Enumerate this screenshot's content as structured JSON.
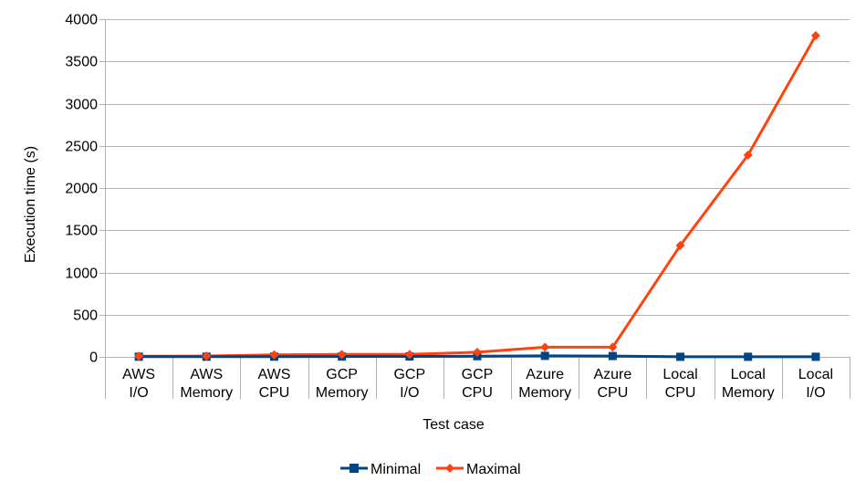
{
  "chart_data": {
    "type": "line",
    "categories": [
      [
        "AWS",
        "I/O"
      ],
      [
        "AWS",
        "Memory"
      ],
      [
        "AWS",
        "CPU"
      ],
      [
        "GCP",
        "Memory"
      ],
      [
        "GCP",
        "I/O"
      ],
      [
        "GCP",
        "CPU"
      ],
      [
        "Azure",
        "Memory"
      ],
      [
        "Azure",
        "CPU"
      ],
      [
        "Local",
        "CPU"
      ],
      [
        "Local",
        "Memory"
      ],
      [
        "Local",
        "I/O"
      ]
    ],
    "series": [
      {
        "name": "Minimal",
        "color": "#004586",
        "marker": "square",
        "values": [
          2,
          2,
          3,
          4,
          5,
          8,
          12,
          10,
          1,
          1,
          1
        ]
      },
      {
        "name": "Maximal",
        "color": "#ff420e",
        "marker": "diamond",
        "values": [
          8,
          10,
          25,
          30,
          30,
          55,
          115,
          115,
          1320,
          2390,
          3805
        ]
      }
    ],
    "xlabel": "Test case",
    "ylabel": "Execution time (s)",
    "ylim": [
      0,
      4000
    ],
    "yticks": [
      0,
      500,
      1000,
      1500,
      2000,
      2500,
      3000,
      3500,
      4000
    ],
    "grid": true,
    "legend_position": "bottom"
  }
}
